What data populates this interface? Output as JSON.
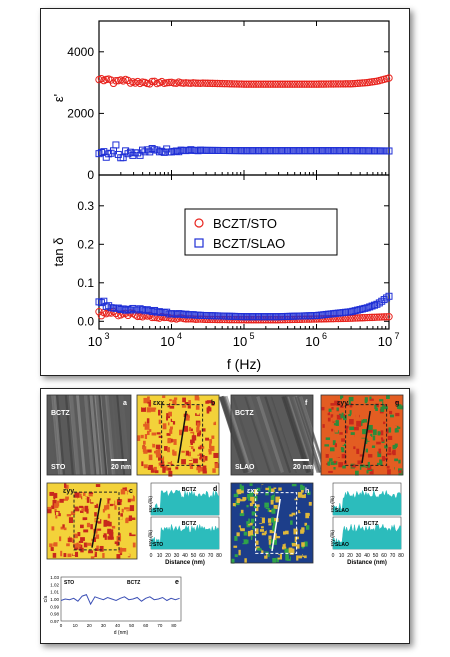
{
  "chart_data": [
    {
      "type": "scatter",
      "x_scale": "log",
      "xlabel": "f (Hz)",
      "xlim": [
        1000,
        10000000
      ],
      "x_ticks": [
        "10",
        "10",
        "10",
        "10",
        "10"
      ],
      "x_tick_exponents": [
        "3",
        "4",
        "5",
        "6",
        "7"
      ],
      "panels": [
        {
          "ylabel": "ε'",
          "ylim": [
            0,
            5000
          ],
          "y_ticks": [
            "0",
            "2000",
            "4000"
          ],
          "series": [
            {
              "name": "BCZT/STO",
              "marker": "circle",
              "color": "#e8231d",
              "x": [
                1000,
                1300,
                1700,
                2000,
                2500,
                3000,
                5000,
                10000,
                30000,
                100000,
                300000,
                1000000,
                3000000,
                5000000,
                7000000,
                10000000
              ],
              "y": [
                3100,
                3150,
                3000,
                3100,
                3050,
                3020,
                3000,
                3000,
                2980,
                2950,
                2950,
                2950,
                2960,
                3000,
                3050,
                3150
              ]
            },
            {
              "name": "BCZT/SLAO",
              "marker": "square",
              "color": "#1f2fd6",
              "x": [
                1000,
                1300,
                1700,
                2000,
                2500,
                3000,
                5000,
                10000,
                30000,
                100000,
                300000,
                1000000,
                3000000,
                10000000
              ],
              "y": [
                850,
                700,
                900,
                650,
                800,
                720,
                780,
                800,
                800,
                790,
                790,
                790,
                790,
                780
              ]
            }
          ]
        },
        {
          "ylabel": "tan δ",
          "ylim": [
            -0.02,
            0.38
          ],
          "y_ticks": [
            "0.0",
            "0.1",
            "0.2",
            "0.3"
          ],
          "legend_position": "right",
          "series": [
            {
              "name": "BCZT/STO",
              "marker": "circle",
              "color": "#e8231d",
              "x": [
                1000,
                1500,
                2000,
                3000,
                5000,
                10000,
                30000,
                100000,
                300000,
                1000000,
                3000000,
                10000000
              ],
              "y": [
                0.02,
                0.025,
                0.015,
                0.018,
                0.012,
                0.008,
                0.005,
                0.004,
                0.004,
                0.006,
                0.008,
                0.012
              ]
            },
            {
              "name": "BCZT/SLAO",
              "marker": "square",
              "color": "#1f2fd6",
              "x": [
                1000,
                1500,
                2000,
                3000,
                5000,
                10000,
                30000,
                100000,
                300000,
                1000000,
                3000000,
                5000000,
                7000000,
                10000000
              ],
              "y": [
                0.05,
                0.04,
                0.035,
                0.03,
                0.028,
                0.02,
                0.015,
                0.012,
                0.012,
                0.015,
                0.025,
                0.035,
                0.045,
                0.065
              ]
            }
          ]
        }
      ]
    },
    {
      "type": "line",
      "panel_letter": "e",
      "xlabel": "d (nm)",
      "ylabel": "c/a",
      "xlim": [
        0,
        85
      ],
      "ylim": [
        0.97,
        1.03
      ],
      "x_ticks": [
        "0",
        "10",
        "20",
        "30",
        "40",
        "50",
        "60",
        "70",
        "80"
      ],
      "y_ticks": [
        "0.97",
        "0.98",
        "0.99",
        "1.00",
        "1.01",
        "1.02",
        "1.03"
      ],
      "region_labels": [
        "STO",
        "BCTZ"
      ],
      "series": [
        {
          "color": "#3b4fb5",
          "x": [
            0,
            3,
            6,
            9,
            12,
            15,
            18,
            21,
            24,
            27,
            30,
            33,
            36,
            39,
            42,
            45,
            48,
            51,
            54,
            57,
            60,
            63,
            66,
            69,
            72,
            75,
            78,
            81,
            84
          ],
          "y": [
            0.998,
            1.0,
            0.999,
            1.001,
            0.997,
            1.004,
            1.006,
            0.993,
            1.003,
            1.001,
            0.999,
            1.002,
            1.0,
            0.998,
            1.001,
            1.003,
            0.999,
            1.0,
            1.002,
            0.997,
            1.001,
            1.003,
            0.999,
            1.0,
            1.002,
            0.998,
            1.001,
            0.999,
            1.001
          ]
        }
      ]
    }
  ],
  "figure_b": {
    "strain_unit": "(%)",
    "panels": [
      {
        "id": "a",
        "kind": "tem",
        "letter": "a",
        "labels": [
          "BCTZ",
          "STO"
        ],
        "scale": "20 nm"
      },
      {
        "id": "b",
        "kind": "map",
        "letter": "b",
        "symbol": "εxx",
        "colors": [
          "#f3d23a",
          "#e35d22",
          "#c8281c"
        ]
      },
      {
        "id": "f",
        "kind": "tem",
        "letter": "f",
        "labels": [
          "BCTZ",
          "SLAO"
        ],
        "scale": "20 nm"
      },
      {
        "id": "g",
        "kind": "map",
        "letter": "g",
        "symbol": "εyy",
        "colors": [
          "#e35d22",
          "#c8281c",
          "#2e8b3a"
        ]
      },
      {
        "id": "c",
        "kind": "map",
        "letter": "c",
        "symbol": "εyy",
        "colors": [
          "#f3d23a",
          "#e35d22",
          "#c8281c"
        ]
      },
      {
        "id": "h",
        "kind": "map",
        "letter": "h",
        "symbol": "εxx",
        "colors": [
          "#1d3e8a",
          "#2fa34a",
          "#e0b83a"
        ]
      }
    ],
    "strain_profiles": [
      {
        "id": "d",
        "letter": "d",
        "top_label": "BCTZ",
        "bottom_label": "BCTZ",
        "substrate": "STO",
        "y_labels": [
          "εxx (%)",
          "εyy (%)"
        ],
        "x_ticks": [
          "0",
          "10",
          "20",
          "30",
          "40",
          "50",
          "60",
          "70",
          "80"
        ],
        "xlabel": "Distance (nm)",
        "color": "#2cbcbc"
      },
      {
        "id": "i",
        "letter": "",
        "top_label": "BCTZ",
        "bottom_label": "BCTZ",
        "substrate": "SLAO",
        "y_labels": [
          "εxx (%)",
          "εyy (%)"
        ],
        "x_ticks": [
          "0",
          "10",
          "20",
          "30",
          "40",
          "50",
          "60",
          "70",
          "80"
        ],
        "xlabel": "Distance (nm)",
        "color": "#2cbcbc"
      }
    ]
  }
}
